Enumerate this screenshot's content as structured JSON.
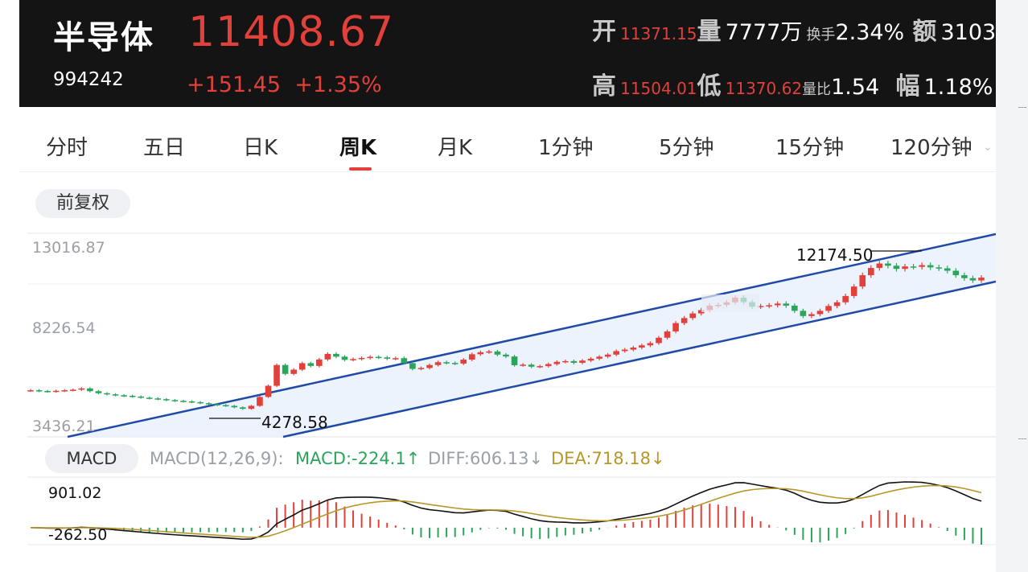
{
  "header": {
    "name": "半导体",
    "code": "994242",
    "price": "11408.67",
    "change": "+151.45",
    "change_pct": "+1.35%",
    "stats": {
      "open_label": "开",
      "open_value": "11371.15",
      "volume_label": "量",
      "volume_value": "7777万",
      "turnover_label": "换手",
      "turnover_value": "2.34%",
      "amount_label": "额",
      "amount_value": "3103",
      "high_label": "高",
      "high_value": "11504.01",
      "low_label": "低",
      "low_value": "11370.62",
      "ratio_label": "量比",
      "ratio_value": "1.54",
      "amp_label": "幅",
      "amp_value": "1.18%"
    }
  },
  "tabs": [
    {
      "label": "分时"
    },
    {
      "label": "五日"
    },
    {
      "label": "日K"
    },
    {
      "label": "周K"
    },
    {
      "label": "月K"
    },
    {
      "label": "1分钟"
    },
    {
      "label": "5分钟"
    },
    {
      "label": "15分钟"
    },
    {
      "label": "120分钟"
    }
  ],
  "active_tab": "周K",
  "adjust_button": "前复权",
  "chart": {
    "y_max_label": "13016.87",
    "y_mid_label": "8226.54",
    "y_min_label": "3436.21",
    "high_annotation": "12174.50",
    "low_annotation": "4278.58"
  },
  "macd": {
    "button": "MACD",
    "params": "MACD(12,26,9):",
    "macd_value": "MACD:-224.1↑",
    "diff_value": "DIFF:606.13↓",
    "dea_value": "DEA:718.18↓",
    "top_label": "901.02",
    "bottom_label": "-262.50"
  },
  "colors": {
    "up": "#e2403a",
    "down": "#2aa55a",
    "channel": "#1f4aa8",
    "dea": "#b8972a"
  },
  "chart_data": {
    "type": "candlestick",
    "yaxis_ticks": [
      13016.87,
      8226.54,
      3436.21
    ],
    "series": [
      {
        "name": "weekly_close",
        "values": [
          5340,
          5300,
          5270,
          5310,
          5340,
          5370,
          5440,
          5290,
          5180,
          5120,
          5070,
          5040,
          5000,
          4940,
          4900,
          4860,
          4810,
          4770,
          4740,
          4700,
          4640,
          4590,
          4540,
          4500,
          4420,
          4340,
          4500,
          4980,
          5580,
          6700,
          6220,
          6450,
          6800,
          6650,
          7000,
          7300,
          7150,
          6980,
          7020,
          7080,
          7140,
          7110,
          7040,
          7070,
          6800,
          6490,
          6540,
          6700,
          6850,
          6810,
          6780,
          6990,
          7280,
          7390,
          7430,
          7260,
          7160,
          6690,
          6720,
          6610,
          6640,
          6750,
          6870,
          6910,
          6820,
          6940,
          7040,
          7150,
          7260,
          7450,
          7530,
          7640,
          7760,
          7880,
          8170,
          8510,
          8960,
          9230,
          9480,
          9660,
          9900,
          9940,
          10080,
          10330,
          10090,
          9840,
          9880,
          9920,
          10010,
          9900,
          9620,
          9340,
          9440,
          9620,
          9880,
          10080,
          10420,
          10930,
          11540,
          11930,
          12170,
          12050,
          11880,
          12010,
          11990,
          12080,
          11960,
          11910,
          11780,
          11540,
          11380,
          11258,
          11408.67
        ]
      }
    ],
    "annotations": [
      {
        "label": "12174.50",
        "type": "high"
      },
      {
        "label": "4278.58",
        "type": "low"
      }
    ]
  }
}
